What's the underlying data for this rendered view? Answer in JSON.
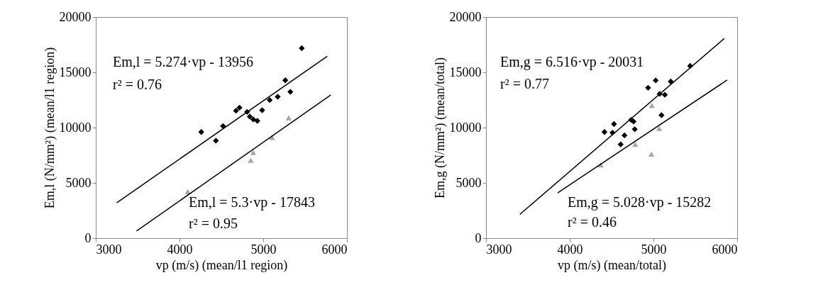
{
  "chart_data": [
    {
      "type": "scatter",
      "xlabel": "vp (m/s) (mean/l1 region)",
      "ylabel": "Em,l (N/mm²) (mean/l1 region)",
      "xlim": [
        3000,
        6000
      ],
      "xticks": [
        3000,
        4000,
        5000,
        6000
      ],
      "ylim": [
        0,
        20000
      ],
      "yticks": [
        0,
        5000,
        10000,
        15000,
        20000
      ],
      "grid": false,
      "legend": false,
      "series": [
        {
          "marker": "diamond",
          "color": "#000000",
          "x": [
            4260,
            4435,
            4520,
            4675,
            4717,
            4808,
            4840,
            4882,
            4930,
            4987,
            5077,
            5173,
            5264,
            5324,
            5460
          ],
          "values": [
            9600,
            8820,
            10140,
            11530,
            11800,
            11420,
            10990,
            10740,
            10610,
            11570,
            12490,
            12790,
            14280,
            13230,
            17180
          ]
        },
        {
          "marker": "triangle",
          "color": "#a6a6a6",
          "x": [
            4098,
            4851,
            4880,
            5106,
            5304
          ],
          "values": [
            4200,
            7040,
            7750,
            9110,
            10890
          ]
        },
        {
          "type": "line",
          "color": "#000000",
          "line_style": "solid",
          "x": [
            3250,
            5765
          ],
          "values": [
            3200,
            16450
          ]
        },
        {
          "type": "line",
          "color": "#000000",
          "line_style": "solid",
          "x": [
            3487,
            5808
          ],
          "values": [
            650,
            12950
          ]
        }
      ],
      "annotations": [
        "Em,l = 5.274·vp - 13956",
        "r² = 0.76",
        "Em,l = 5.3·vp - 17843",
        "r² = 0.95"
      ]
    },
    {
      "type": "scatter",
      "xlabel": "vp (m/s) (mean/total)",
      "ylabel": "Em,g (N/mm²) (mean/total)",
      "xlim": [
        3000,
        6000
      ],
      "xticks": [
        3000,
        4000,
        5000,
        6000
      ],
      "ylim": [
        0,
        20000
      ],
      "yticks": [
        0,
        5000,
        10000,
        15000,
        20000
      ],
      "grid": false,
      "legend": false,
      "series": [
        {
          "marker": "diamond",
          "color": "#000000",
          "x": [
            4415,
            4511,
            4529,
            4609,
            4654,
            4734,
            4763,
            4777,
            4936,
            5027,
            5074,
            5136,
            5096,
            5207,
            5439
          ],
          "values": [
            9600,
            9540,
            10320,
            8480,
            9300,
            10700,
            10550,
            9850,
            13600,
            14270,
            13050,
            12970,
            11120,
            14170,
            15580
          ]
        },
        {
          "marker": "triangle",
          "color": "#a6a6a6",
          "x": [
            4370,
            4782,
            4976,
            4981,
            5069
          ],
          "values": [
            6630,
            8480,
            7600,
            12000,
            9920
          ]
        },
        {
          "type": "line",
          "color": "#000000",
          "line_style": "solid",
          "x": [
            3404,
            5846
          ],
          "values": [
            2150,
            18050
          ]
        },
        {
          "type": "line",
          "color": "#000000",
          "line_style": "solid",
          "x": [
            3856,
            5880
          ],
          "values": [
            4100,
            14300
          ]
        }
      ],
      "annotations": [
        "Em,g = 6.516·vp - 20031",
        "r² = 0.77",
        "Em,g = 5.028·vp - 15282",
        "r² = 0.46"
      ]
    }
  ]
}
